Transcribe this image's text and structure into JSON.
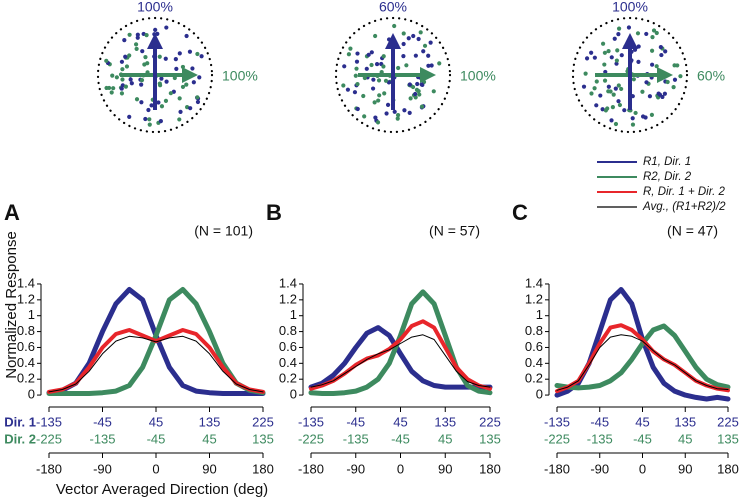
{
  "chart_data": [
    {
      "type": "line",
      "title": "A",
      "annotation": "(N = 101)",
      "ylabel": "Normalized Response",
      "xlabel": "Vector Averaged Direction (deg)",
      "dir1_label": "Dir. 1",
      "dir2_label": "Dir. 2",
      "stimulus": {
        "dir1_coherence": "100%",
        "dir2_coherence": "100%"
      },
      "x": [
        -180,
        -157.5,
        -135,
        -112.5,
        -90,
        -67.5,
        -45,
        -22.5,
        0,
        22.5,
        45,
        67.5,
        90,
        112.5,
        135,
        157.5,
        180
      ],
      "xlim": [
        -180,
        180
      ],
      "xticks": [
        -180,
        -90,
        0,
        90,
        180
      ],
      "x2lim": [
        -135,
        225
      ],
      "x2ticks": [
        -135,
        -45,
        45,
        135,
        225
      ],
      "x3lim": [
        -225,
        135
      ],
      "x3ticks": [
        -225,
        -135,
        -45,
        45,
        135
      ],
      "ylim": [
        -0.1,
        1.45
      ],
      "yticks": [
        0,
        0.2,
        0.4,
        0.6,
        0.8,
        1,
        1.2,
        1.4
      ],
      "series": [
        {
          "name": "R1, Dir. 1",
          "color": "#2b2e8e",
          "values": [
            0.03,
            0.06,
            0.15,
            0.4,
            0.8,
            1.15,
            1.33,
            1.2,
            0.75,
            0.35,
            0.12,
            0.05,
            0.03,
            0.02,
            0.02,
            0.02,
            0.02
          ]
        },
        {
          "name": "R2, Dir. 2",
          "color": "#3d8a5f",
          "values": [
            0.02,
            0.02,
            0.02,
            0.02,
            0.03,
            0.05,
            0.12,
            0.35,
            0.75,
            1.2,
            1.33,
            1.15,
            0.8,
            0.4,
            0.15,
            0.06,
            0.03
          ]
        },
        {
          "name": "R, Dir. 1 + Dir. 2",
          "color": "#e8262b",
          "values": [
            0.04,
            0.07,
            0.15,
            0.35,
            0.6,
            0.77,
            0.82,
            0.75,
            0.68,
            0.75,
            0.82,
            0.77,
            0.6,
            0.35,
            0.15,
            0.07,
            0.04
          ]
        },
        {
          "name": "Avg., (R1+R2)/2",
          "color": "#000000",
          "values": [
            0.04,
            0.07,
            0.14,
            0.3,
            0.52,
            0.68,
            0.74,
            0.72,
            0.67,
            0.72,
            0.74,
            0.68,
            0.52,
            0.3,
            0.14,
            0.07,
            0.04
          ]
        }
      ]
    },
    {
      "type": "line",
      "title": "B",
      "annotation": "(N = 57)",
      "stimulus": {
        "dir1_coherence": "60%",
        "dir2_coherence": "100%"
      },
      "x": [
        -180,
        -157.5,
        -135,
        -112.5,
        -90,
        -67.5,
        -45,
        -22.5,
        0,
        22.5,
        45,
        67.5,
        90,
        112.5,
        135,
        157.5,
        180
      ],
      "xlim": [
        -180,
        180
      ],
      "xticks": [
        -180,
        -90,
        0,
        90,
        180
      ],
      "x2lim": [
        -135,
        225
      ],
      "x2ticks": [
        -135,
        -45,
        45,
        135,
        225
      ],
      "x3lim": [
        -225,
        135
      ],
      "x3ticks": [
        -225,
        -135,
        -45,
        45,
        135
      ],
      "ylim": [
        -0.1,
        1.45
      ],
      "yticks": [
        0,
        0.2,
        0.4,
        0.6,
        0.8,
        1,
        1.2,
        1.4
      ],
      "series": [
        {
          "name": "R1, Dir. 1",
          "color": "#2b2e8e",
          "values": [
            0.1,
            0.15,
            0.25,
            0.4,
            0.6,
            0.78,
            0.85,
            0.75,
            0.52,
            0.3,
            0.18,
            0.12,
            0.1,
            0.1,
            0.1,
            0.1,
            0.1
          ]
        },
        {
          "name": "R2, Dir. 2",
          "color": "#3d8a5f",
          "values": [
            0.03,
            0.02,
            0.02,
            0.03,
            0.05,
            0.1,
            0.2,
            0.4,
            0.75,
            1.15,
            1.3,
            1.15,
            0.75,
            0.35,
            0.12,
            0.05,
            0.03
          ]
        },
        {
          "name": "R, Dir. 1 + Dir. 2",
          "color": "#e8262b",
          "values": [
            0.08,
            0.12,
            0.18,
            0.27,
            0.38,
            0.46,
            0.5,
            0.58,
            0.7,
            0.87,
            0.93,
            0.85,
            0.6,
            0.35,
            0.2,
            0.12,
            0.08
          ]
        },
        {
          "name": "Avg., (R1+R2)/2",
          "color": "#000000",
          "values": [
            0.1,
            0.13,
            0.18,
            0.27,
            0.36,
            0.45,
            0.52,
            0.57,
            0.65,
            0.73,
            0.76,
            0.7,
            0.5,
            0.3,
            0.17,
            0.12,
            0.1
          ]
        }
      ]
    },
    {
      "type": "line",
      "title": "C",
      "annotation": "(N = 47)",
      "legend": true,
      "stimulus": {
        "dir1_coherence": "100%",
        "dir2_coherence": "60%"
      },
      "x": [
        -180,
        -157.5,
        -135,
        -112.5,
        -90,
        -67.5,
        -45,
        -22.5,
        0,
        22.5,
        45,
        67.5,
        90,
        112.5,
        135,
        157.5,
        180
      ],
      "xlim": [
        -180,
        180
      ],
      "xticks": [
        -180,
        -90,
        0,
        90,
        180
      ],
      "x2lim": [
        -135,
        225
      ],
      "x2ticks": [
        -135,
        -45,
        45,
        135,
        225
      ],
      "x3lim": [
        -225,
        135
      ],
      "x3ticks": [
        -225,
        -135,
        -45,
        45,
        135
      ],
      "ylim": [
        -0.1,
        1.45
      ],
      "yticks": [
        0,
        0.2,
        0.4,
        0.6,
        0.8,
        1,
        1.2,
        1.4
      ],
      "series": [
        {
          "name": "R1, Dir. 1",
          "color": "#2b2e8e",
          "values": [
            0,
            0.05,
            0.15,
            0.4,
            0.8,
            1.2,
            1.33,
            1.15,
            0.7,
            0.35,
            0.15,
            0.05,
            0,
            -0.03,
            -0.05,
            -0.03,
            -0.05
          ]
        },
        {
          "name": "R2, Dir. 2",
          "color": "#3d8a5f",
          "values": [
            0.12,
            0.1,
            0.09,
            0.1,
            0.12,
            0.18,
            0.28,
            0.45,
            0.65,
            0.82,
            0.87,
            0.75,
            0.55,
            0.35,
            0.2,
            0.13,
            0.1
          ]
        },
        {
          "name": "R, Dir. 1 + Dir. 2",
          "color": "#e8262b",
          "values": [
            0.05,
            0.1,
            0.18,
            0.4,
            0.65,
            0.85,
            0.88,
            0.82,
            0.7,
            0.55,
            0.45,
            0.38,
            0.28,
            0.18,
            0.12,
            0.08,
            0.06
          ]
        },
        {
          "name": "Avg., (R1+R2)/2",
          "color": "#000000",
          "values": [
            0.06,
            0.1,
            0.18,
            0.38,
            0.6,
            0.73,
            0.76,
            0.74,
            0.68,
            0.56,
            0.45,
            0.38,
            0.28,
            0.18,
            0.12,
            0.08,
            0.07
          ]
        }
      ]
    }
  ]
}
